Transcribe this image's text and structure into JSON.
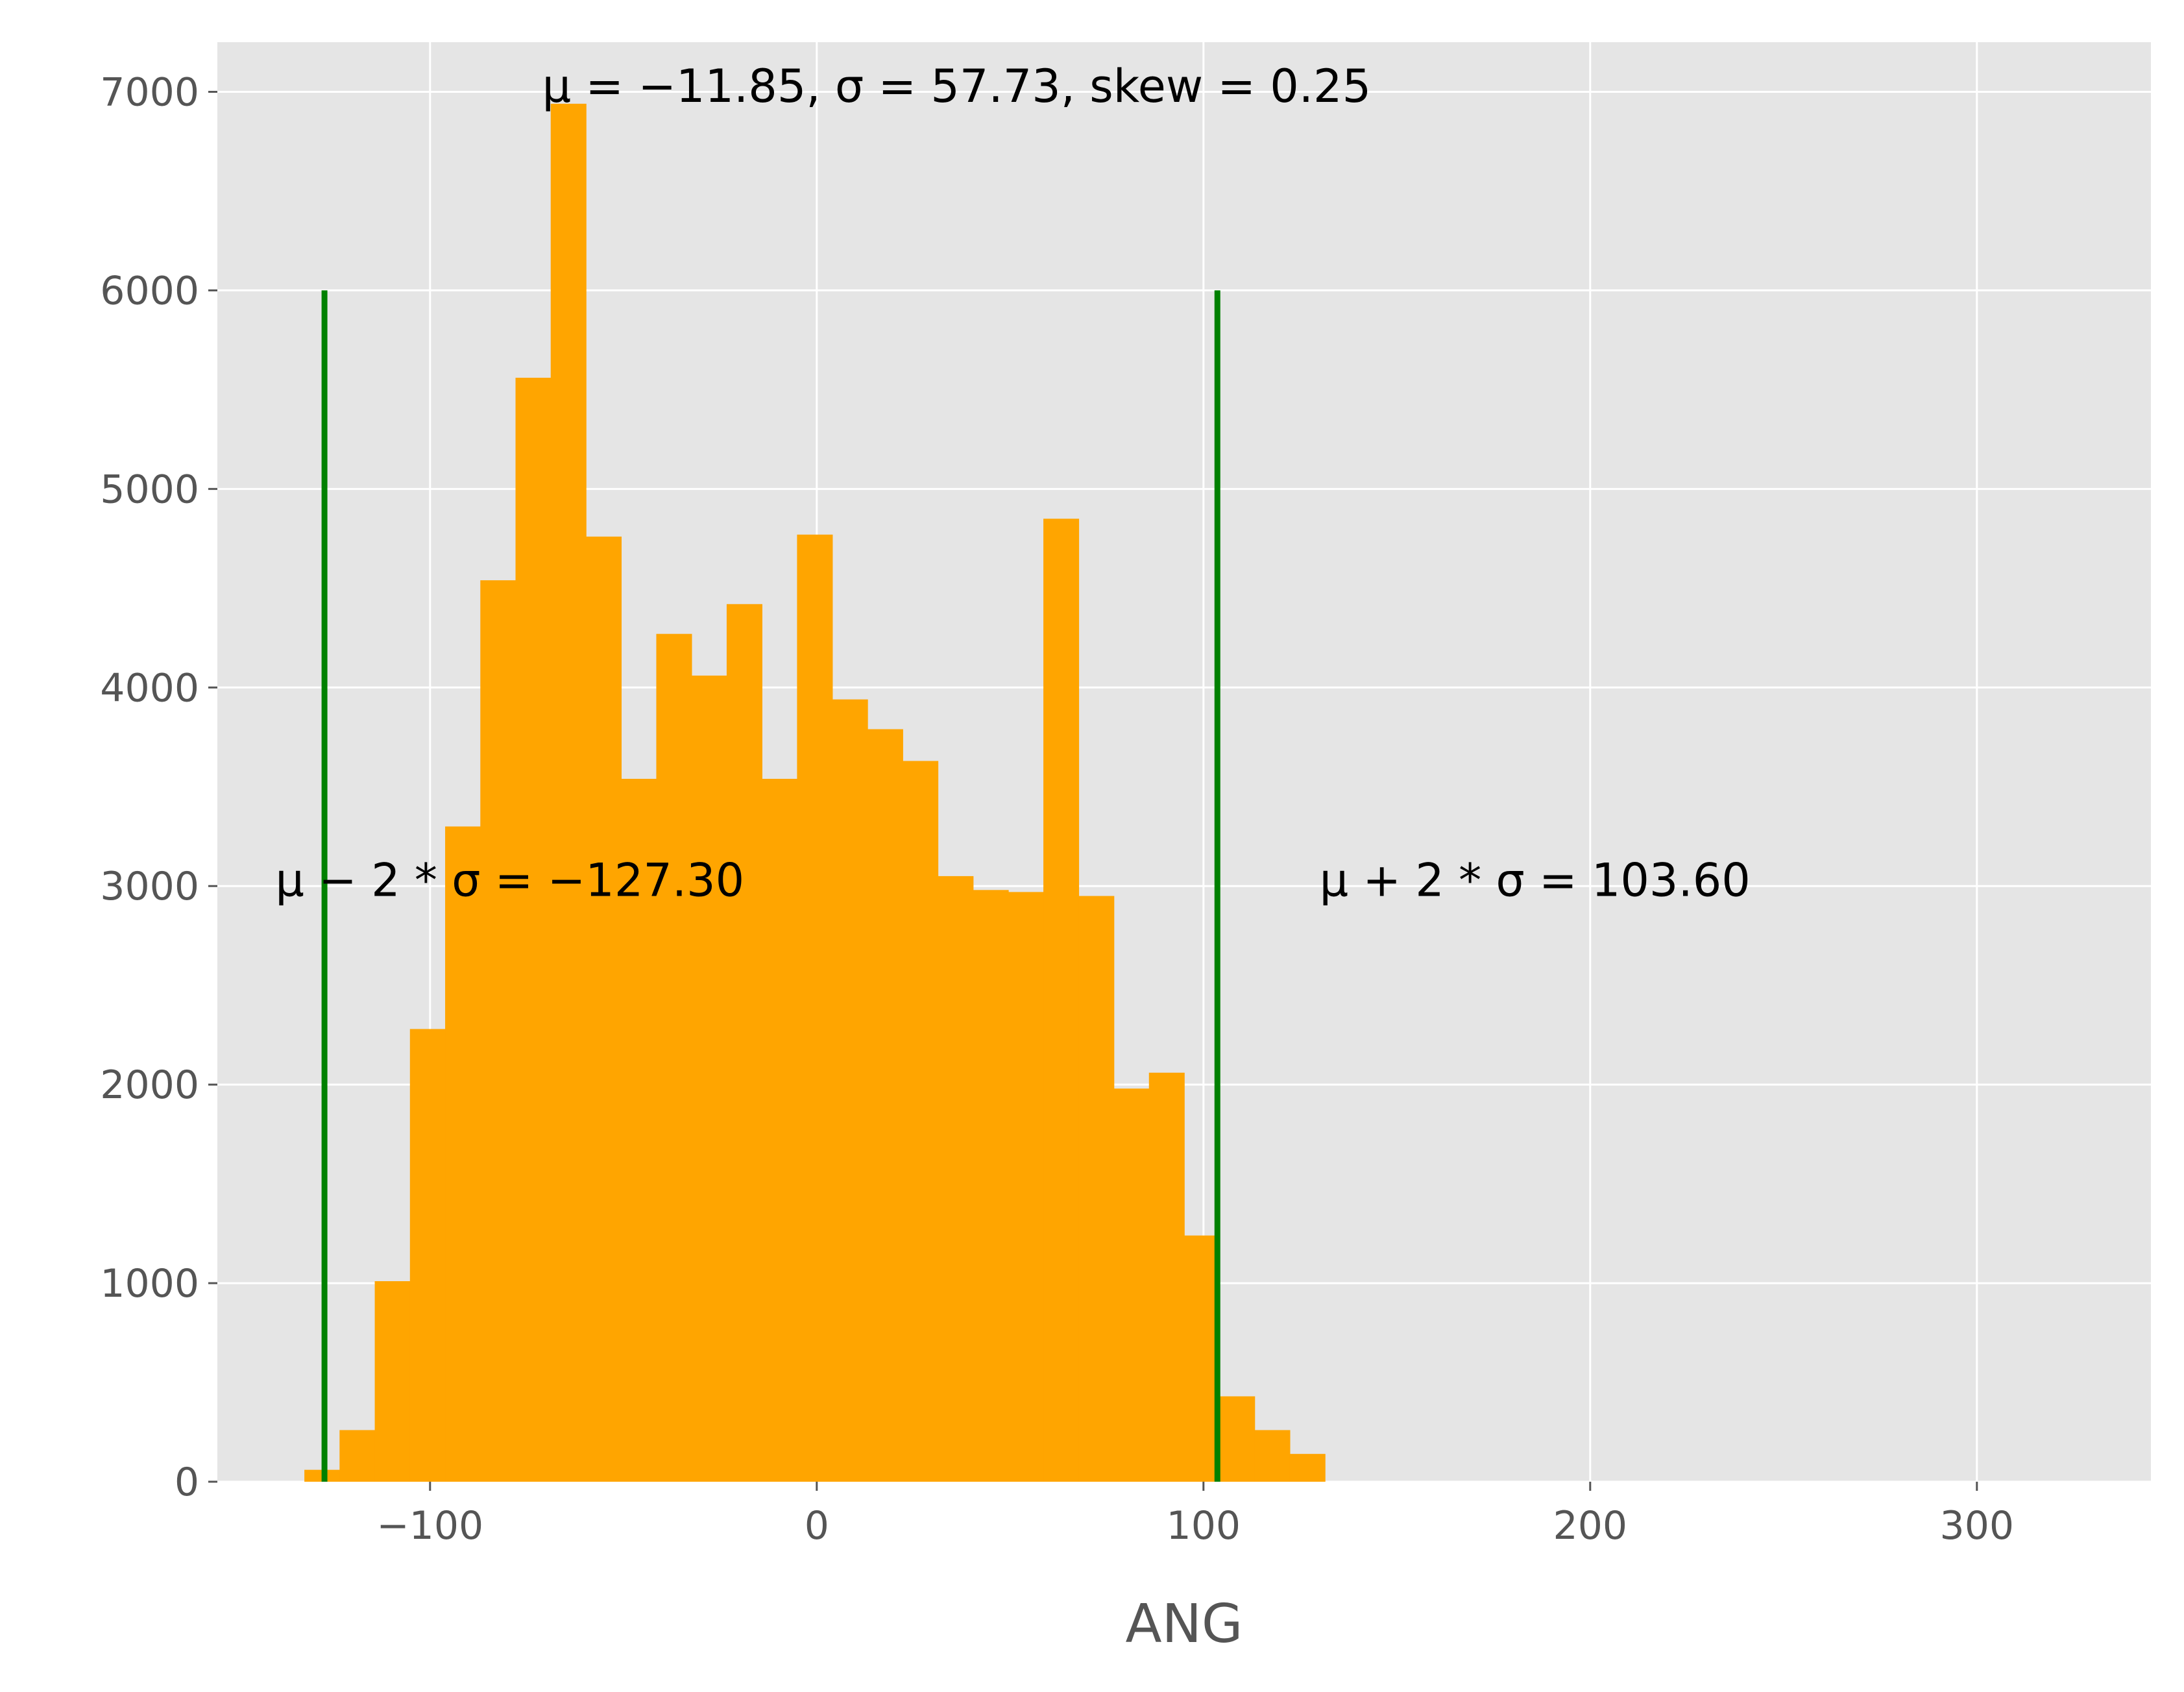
{
  "chart_data": {
    "type": "bar",
    "xlabel": "ANG",
    "ylabel": "",
    "title": "",
    "xlim": [
      -155,
      345
    ],
    "ylim": [
      0,
      7250
    ],
    "xticks": [
      -100,
      0,
      100,
      200,
      300
    ],
    "xtick_labels": [
      "−100",
      "0",
      "100",
      "200",
      "300"
    ],
    "yticks": [
      0,
      1000,
      2000,
      3000,
      4000,
      5000,
      6000,
      7000
    ],
    "ytick_labels": [
      "0",
      "1000",
      "2000",
      "3000",
      "4000",
      "5000",
      "6000",
      "7000"
    ],
    "grid": true,
    "bin_width": 9.1,
    "bin_edges_start": -132.5,
    "values": [
      60,
      260,
      1010,
      2280,
      3300,
      4540,
      5560,
      6940,
      4760,
      3540,
      4270,
      4060,
      4420,
      3540,
      4770,
      3940,
      3790,
      3630,
      3050,
      2980,
      2970,
      4850,
      2950,
      1980,
      2060,
      1240,
      430,
      260,
      140
    ],
    "vlines": [
      {
        "x": -127.3,
        "ymin": 0,
        "ymax": 6000
      },
      {
        "x": 103.6,
        "ymin": 0,
        "ymax": 6000
      }
    ],
    "annotations": [
      {
        "x": -71,
        "y": 6950,
        "text": "μ = −11.85, σ = 57.73, skew = 0.25"
      },
      {
        "x": -140,
        "y": 2950,
        "text": "μ − 2 * σ = −127.30"
      },
      {
        "x": 130,
        "y": 2950,
        "text": "μ + 2 * σ = 103.60"
      }
    ],
    "colors": {
      "bars": "#FFA500",
      "vlines": "#008000",
      "plot_bg": "#E5E5E5",
      "grid": "#FFFFFF"
    }
  }
}
